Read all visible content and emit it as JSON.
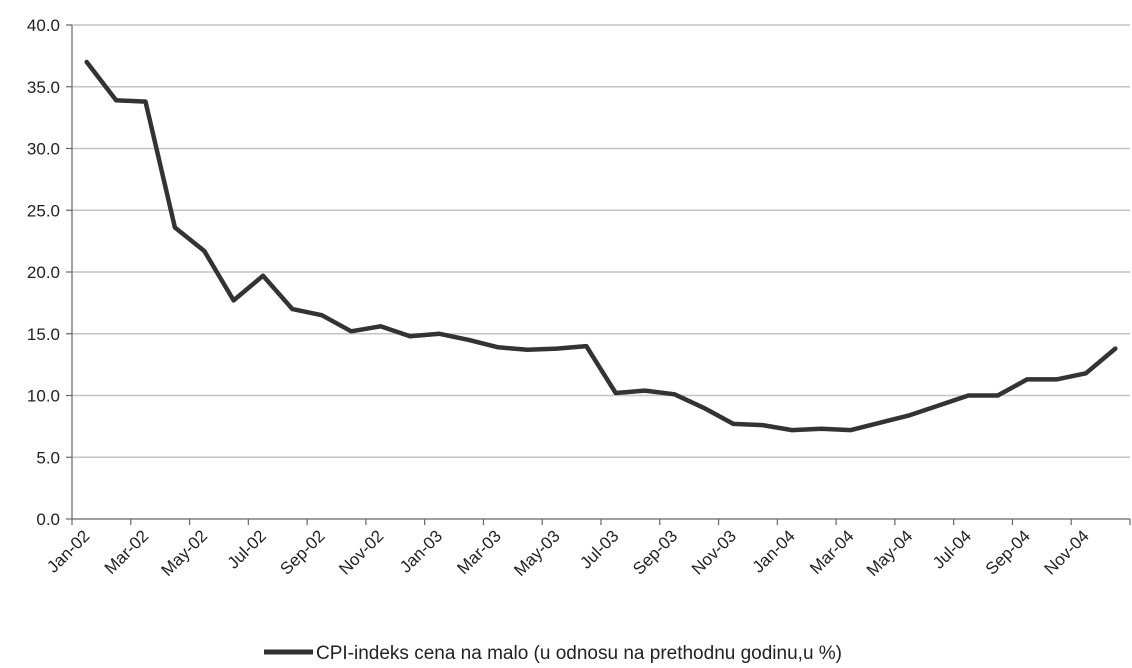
{
  "chart_data": {
    "type": "line",
    "x": [
      "Jan-02",
      "Feb-02",
      "Mar-02",
      "Apr-02",
      "May-02",
      "Jun-02",
      "Jul-02",
      "Aug-02",
      "Sep-02",
      "Oct-02",
      "Nov-02",
      "Dec-02",
      "Jan-03",
      "Feb-03",
      "Mar-03",
      "Apr-03",
      "May-03",
      "Jun-03",
      "Jul-03",
      "Aug-03",
      "Sep-03",
      "Oct-03",
      "Nov-03",
      "Dec-03",
      "Jan-04",
      "Feb-04",
      "Mar-04",
      "Apr-04",
      "May-04",
      "Jun-04",
      "Jul-04",
      "Aug-04",
      "Sep-04",
      "Oct-04",
      "Nov-04",
      "Dec-04"
    ],
    "xtick_labels": [
      "Jan-02",
      "Mar-02",
      "May-02",
      "Jul-02",
      "Sep-02",
      "Nov-02",
      "Jan-03",
      "Mar-03",
      "May-03",
      "Jul-03",
      "Sep-03",
      "Nov-03",
      "Jan-04",
      "Mar-04",
      "May-04",
      "Jul-04",
      "Sep-04",
      "Nov-04"
    ],
    "series": [
      {
        "name": "CPI-indeks cena na malo (u odnosu na prethodnu godinu,u %)",
        "color": "#333333",
        "values": [
          37.0,
          33.9,
          33.8,
          23.6,
          21.7,
          17.7,
          19.7,
          17.0,
          16.5,
          15.2,
          15.6,
          14.8,
          15.0,
          14.5,
          13.9,
          13.7,
          13.8,
          14.0,
          10.2,
          10.4,
          10.1,
          9.0,
          7.7,
          7.6,
          7.2,
          7.3,
          7.2,
          7.8,
          8.4,
          9.2,
          10.0,
          10.0,
          11.3,
          11.3,
          11.8,
          13.8
        ]
      }
    ],
    "yticks": [
      "0.0",
      "5.0",
      "10.0",
      "15.0",
      "20.0",
      "25.0",
      "30.0",
      "35.0",
      "40.0"
    ],
    "ylim": [
      0,
      40
    ],
    "title": "",
    "xlabel": "",
    "ylabel": "",
    "grid": "horizontal",
    "legend_position": "bottom"
  }
}
